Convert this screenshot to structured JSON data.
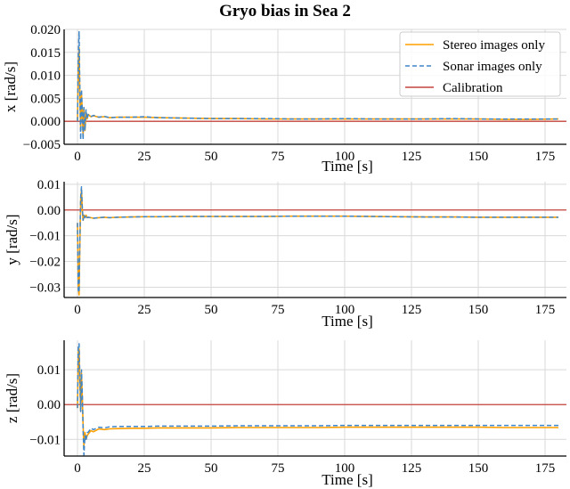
{
  "title": "Gryo bias in Sea 2",
  "colors": {
    "stereo": "#ff9f00",
    "sonar": "#3f86c8",
    "calibration": "#c6443d",
    "grid": "#d9d9d9",
    "axis": "#000000"
  },
  "legend": {
    "placement": "top-right of first panel",
    "entries": [
      {
        "label": "Stereo images only",
        "color": "#ff9f00",
        "style": "solid"
      },
      {
        "label": "Sonar images only",
        "color": "#3f86c8",
        "style": "dashed"
      },
      {
        "label": "Calibration",
        "color": "#c6443d",
        "style": "solid"
      }
    ]
  },
  "chart_data": [
    {
      "type": "line",
      "xlabel": "Time [s]",
      "ylabel": "x [rad/s]",
      "xlim": [
        -5,
        183
      ],
      "ylim": [
        -0.005,
        0.02
      ],
      "xticks": [
        0,
        25,
        50,
        75,
        100,
        125,
        150,
        175
      ],
      "yticks": [
        -0.005,
        0.0,
        0.005,
        0.01,
        0.015,
        0.02
      ],
      "ytick_labels": [
        "−0.005",
        "0.000",
        "0.005",
        "0.010",
        "0.015",
        "0.020"
      ],
      "grid": true,
      "calibration": 0.0,
      "series": [
        {
          "name": "Stereo images only",
          "x": [
            0,
            0.3,
            0.6,
            0.9,
            1.2,
            1.5,
            1.8,
            2.1,
            2.4,
            2.8,
            3.2,
            3.6,
            4,
            5,
            6,
            8,
            10,
            12,
            15,
            20,
            25,
            30,
            40,
            50,
            60,
            70,
            80,
            90,
            100,
            110,
            120,
            130,
            140,
            150,
            160,
            170,
            180
          ],
          "y": [
            0.0,
            0.012,
            0.016,
            0.005,
            -0.002,
            0.006,
            0.002,
            -0.003,
            0.003,
            -0.002,
            0.002,
            0.0005,
            0.0015,
            0.001,
            0.0012,
            0.0009,
            0.001,
            0.0008,
            0.0009,
            0.0009,
            0.0009,
            0.0008,
            0.0007,
            0.0006,
            0.0006,
            0.0005,
            0.0005,
            0.0005,
            0.0005,
            0.0005,
            0.0005,
            0.0005,
            0.0005,
            0.0005,
            0.0004,
            0.0004,
            0.0005
          ]
        },
        {
          "name": "Sonar images only",
          "x": [
            0,
            0.3,
            0.6,
            0.9,
            1.2,
            1.5,
            1.8,
            2.1,
            2.4,
            2.8,
            3.2,
            3.6,
            4,
            5,
            6,
            8,
            10,
            12,
            15,
            20,
            25,
            30,
            40,
            50,
            60,
            70,
            80,
            90,
            100,
            110,
            120,
            130,
            140,
            150,
            160,
            170,
            180
          ],
          "y": [
            0.0,
            0.014,
            0.0195,
            0.006,
            -0.004,
            0.007,
            0.002,
            -0.004,
            0.003,
            -0.002,
            0.0025,
            0.0005,
            0.0015,
            0.001,
            0.0013,
            0.0009,
            0.0011,
            0.0008,
            0.0009,
            0.0009,
            0.001,
            0.0008,
            0.0007,
            0.0006,
            0.0006,
            0.0006,
            0.0005,
            0.0005,
            0.0006,
            0.0005,
            0.0005,
            0.0005,
            0.0006,
            0.0005,
            0.0005,
            0.0005,
            0.0005
          ]
        }
      ]
    },
    {
      "type": "line",
      "xlabel": "Time [s]",
      "ylabel": "y [rad/s]",
      "xlim": [
        -5,
        183
      ],
      "ylim": [
        -0.034,
        0.011
      ],
      "xticks": [
        0,
        25,
        50,
        75,
        100,
        125,
        150,
        175
      ],
      "yticks": [
        -0.03,
        -0.02,
        -0.01,
        0.0,
        0.01
      ],
      "ytick_labels": [
        "−0.03",
        "−0.02",
        "−0.01",
        "0.00",
        "0.01"
      ],
      "grid": true,
      "calibration": 0.0,
      "series": [
        {
          "name": "Stereo images only",
          "x": [
            0,
            0.3,
            0.6,
            0.9,
            1.2,
            1.5,
            1.8,
            2.1,
            2.4,
            2.8,
            3.2,
            3.6,
            4,
            5,
            6,
            8,
            10,
            12,
            15,
            20,
            25,
            30,
            40,
            50,
            60,
            70,
            80,
            90,
            100,
            110,
            120,
            130,
            140,
            150,
            160,
            170,
            180
          ],
          "y": [
            -0.005,
            -0.03,
            -0.033,
            -0.012,
            0.004,
            0.008,
            0.0,
            -0.004,
            -0.002,
            -0.003,
            -0.002,
            -0.003,
            -0.0028,
            -0.003,
            -0.0032,
            -0.003,
            -0.0028,
            -0.003,
            -0.0028,
            -0.0027,
            -0.0026,
            -0.0026,
            -0.0025,
            -0.0025,
            -0.0025,
            -0.0025,
            -0.0024,
            -0.0024,
            -0.0024,
            -0.0025,
            -0.0026,
            -0.0027,
            -0.0027,
            -0.0028,
            -0.0028,
            -0.0028,
            -0.0028
          ]
        },
        {
          "name": "Sonar images only",
          "x": [
            0,
            0.3,
            0.6,
            0.9,
            1.2,
            1.5,
            1.8,
            2.1,
            2.4,
            2.8,
            3.2,
            3.6,
            4,
            5,
            6,
            8,
            10,
            12,
            15,
            20,
            25,
            30,
            40,
            50,
            60,
            70,
            80,
            90,
            100,
            110,
            120,
            130,
            140,
            150,
            160,
            170,
            180
          ],
          "y": [
            -0.005,
            -0.031,
            -0.032,
            -0.011,
            0.005,
            0.009,
            0.001,
            -0.004,
            -0.002,
            -0.003,
            -0.002,
            -0.003,
            -0.0028,
            -0.0031,
            -0.0032,
            -0.003,
            -0.0028,
            -0.003,
            -0.0028,
            -0.0027,
            -0.0026,
            -0.0026,
            -0.0025,
            -0.0025,
            -0.0025,
            -0.0025,
            -0.0024,
            -0.0024,
            -0.0024,
            -0.0025,
            -0.0026,
            -0.0027,
            -0.0027,
            -0.0028,
            -0.0028,
            -0.0028,
            -0.0028
          ]
        }
      ]
    },
    {
      "type": "line",
      "xlabel": "Time [s]",
      "ylabel": "z [rad/s]",
      "xlim": [
        -5,
        183
      ],
      "ylim": [
        -0.0148,
        0.0185
      ],
      "xticks": [
        0,
        25,
        50,
        75,
        100,
        125,
        150,
        175
      ],
      "yticks": [
        -0.01,
        0.0,
        0.01
      ],
      "ytick_labels": [
        "−0.01",
        "0.00",
        "0.01"
      ],
      "grid": true,
      "calibration": 0.0,
      "series": [
        {
          "name": "Stereo images only",
          "x": [
            0,
            0.3,
            0.6,
            0.9,
            1.2,
            1.5,
            1.8,
            2.1,
            2.4,
            2.8,
            3.2,
            3.6,
            4,
            5,
            6,
            8,
            10,
            12,
            15,
            20,
            25,
            30,
            40,
            50,
            60,
            70,
            80,
            90,
            100,
            110,
            120,
            130,
            140,
            150,
            160,
            170,
            180
          ],
          "y": [
            -0.001,
            0.015,
            0.016,
            0.006,
            -0.002,
            0.009,
            0.002,
            -0.006,
            -0.012,
            -0.008,
            -0.01,
            -0.009,
            -0.0085,
            -0.0075,
            -0.0078,
            -0.007,
            -0.0072,
            -0.007,
            -0.0069,
            -0.0068,
            -0.0068,
            -0.0067,
            -0.0067,
            -0.0067,
            -0.0066,
            -0.0066,
            -0.0066,
            -0.0066,
            -0.0065,
            -0.0065,
            -0.0065,
            -0.0065,
            -0.0065,
            -0.0065,
            -0.0066,
            -0.0066,
            -0.0066
          ]
        },
        {
          "name": "Sonar images only",
          "x": [
            0,
            0.3,
            0.6,
            0.9,
            1.2,
            1.5,
            1.8,
            2.1,
            2.4,
            2.8,
            3.2,
            3.6,
            4,
            5,
            6,
            8,
            10,
            12,
            15,
            20,
            25,
            30,
            40,
            50,
            60,
            70,
            80,
            90,
            100,
            110,
            120,
            130,
            140,
            150,
            160,
            170,
            180
          ],
          "y": [
            -0.001,
            0.017,
            0.0175,
            0.007,
            -0.002,
            0.01,
            0.003,
            -0.007,
            -0.0145,
            -0.009,
            -0.0105,
            -0.008,
            -0.008,
            -0.0068,
            -0.0072,
            -0.0065,
            -0.0067,
            -0.0064,
            -0.0063,
            -0.0063,
            -0.0063,
            -0.0062,
            -0.0062,
            -0.0062,
            -0.0061,
            -0.0061,
            -0.0061,
            -0.0061,
            -0.006,
            -0.006,
            -0.006,
            -0.006,
            -0.006,
            -0.006,
            -0.006,
            -0.006,
            -0.006
          ]
        }
      ]
    }
  ]
}
